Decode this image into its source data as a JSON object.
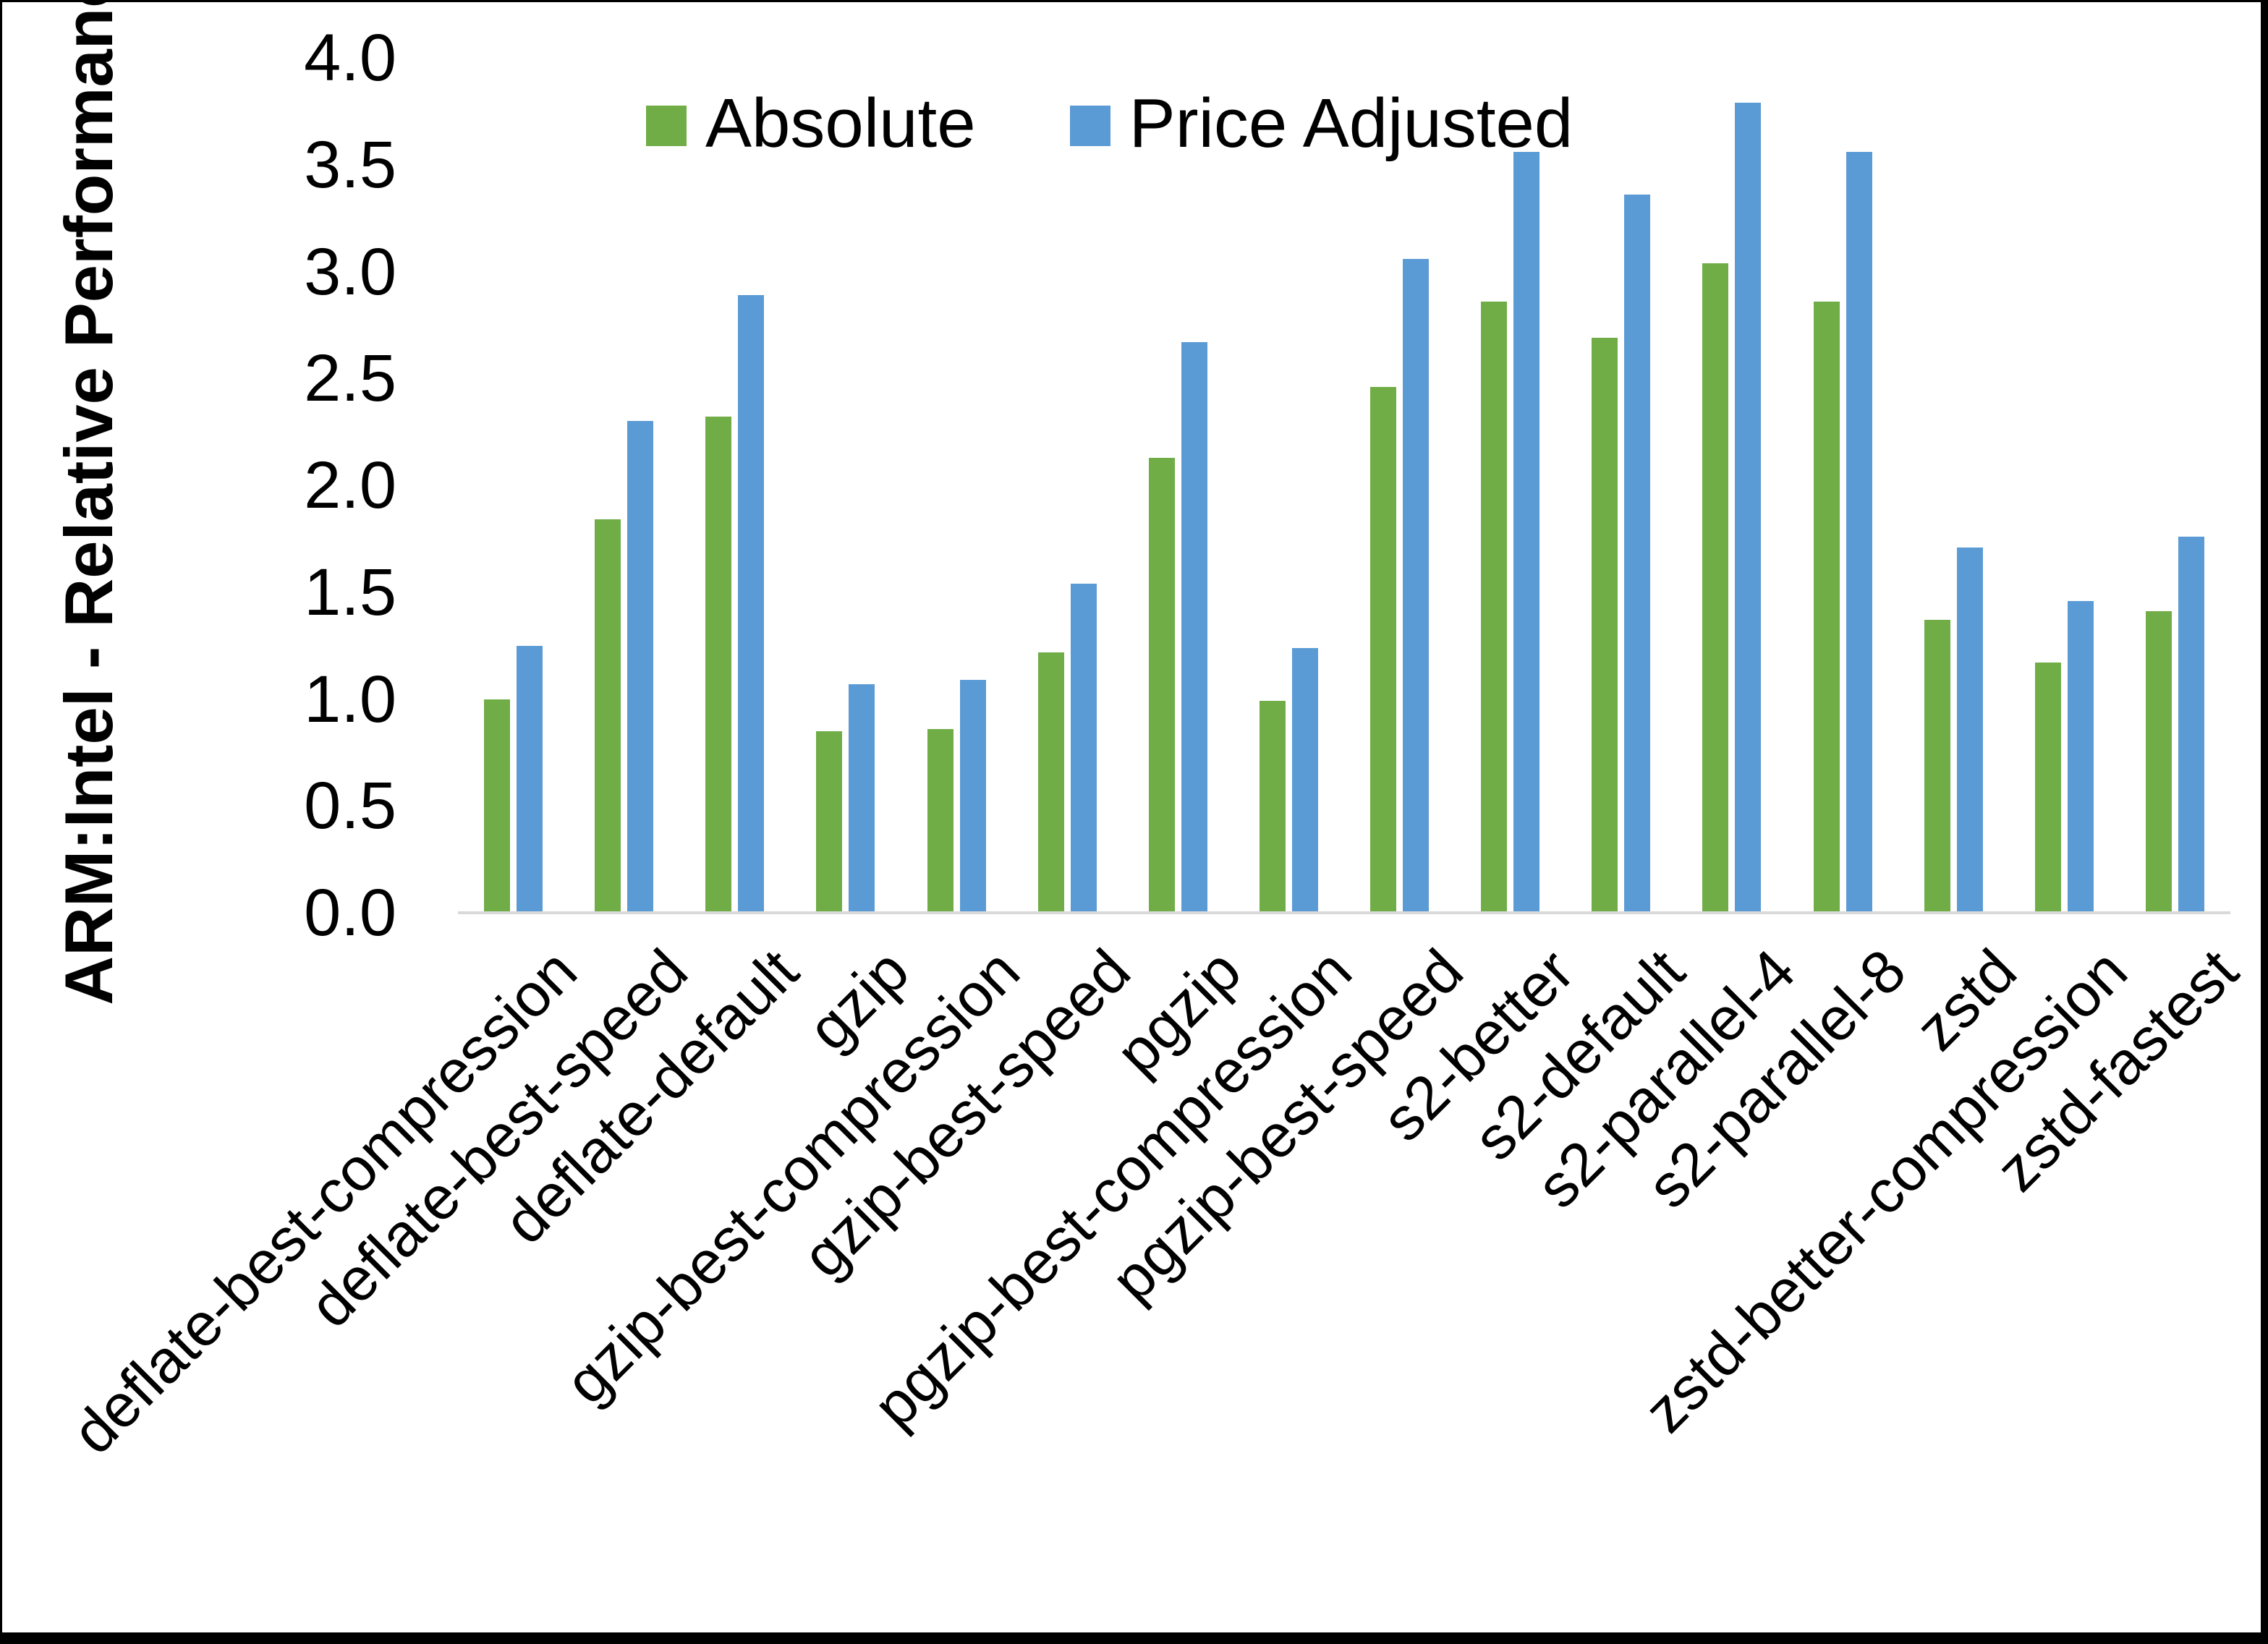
{
  "colors": {
    "absolute": "#70AD47",
    "price_adjusted": "#5B9BD5",
    "axis_line": "#D9D9D9",
    "text": "#000000",
    "background": "#FFFFFF",
    "frame": "#000000"
  },
  "legend": {
    "items": [
      {
        "label": "Absolute",
        "color": "#70AD47"
      },
      {
        "label": "Price Adjusted",
        "color": "#5B9BD5"
      }
    ],
    "position": "top-center"
  },
  "chart_data": {
    "type": "bar",
    "title": "",
    "xlabel": "",
    "ylabel": "ARM:Intel - Relative Performance",
    "ylim": [
      0.0,
      4.0
    ],
    "y_ticks": [
      "0.0",
      "0.5",
      "1.0",
      "1.5",
      "2.0",
      "2.5",
      "3.0",
      "3.5",
      "4.0"
    ],
    "grid": false,
    "legend_position": "top-center",
    "categories": [
      "deflate-best-compression",
      "deflate-best-speed",
      "deflate-default",
      "gzip",
      "gzip-best-compression",
      "gzip-best-speed",
      "pgzip",
      "pgzip-best-compression",
      "pgzip-best-speed",
      "s2-better",
      "s2-default",
      "s2-parallel-4",
      "s2-parallel-8",
      "zstd",
      "zstd-better-compression",
      "zstd-fastest"
    ],
    "series": [
      {
        "name": "Absolute",
        "color": "#70AD47",
        "values": [
          1.0,
          1.84,
          2.32,
          0.85,
          0.86,
          1.22,
          2.13,
          0.99,
          2.46,
          2.86,
          2.69,
          3.04,
          2.86,
          1.37,
          1.17,
          1.41
        ]
      },
      {
        "name": "Price Adjusted",
        "color": "#5B9BD5",
        "values": [
          1.25,
          2.3,
          2.89,
          1.07,
          1.09,
          1.54,
          2.67,
          1.24,
          3.06,
          3.56,
          3.36,
          3.79,
          3.56,
          1.71,
          1.46,
          1.76
        ]
      }
    ]
  }
}
